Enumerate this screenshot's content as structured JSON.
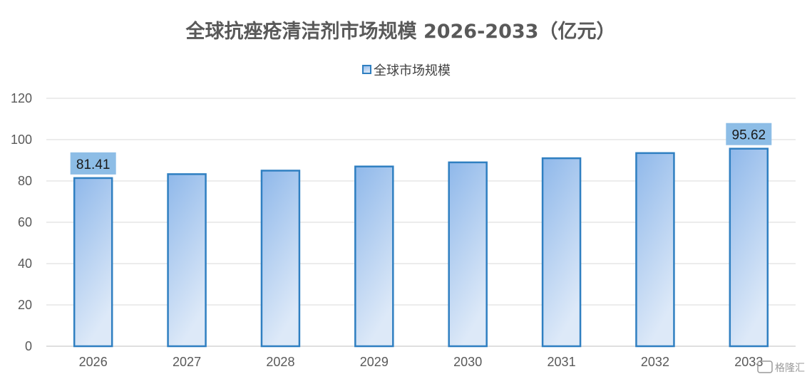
{
  "chart_data": {
    "type": "bar",
    "title": "全球抗痤疮清洁剂市场规模 2026-2033（亿元）",
    "xlabel": "",
    "ylabel": "",
    "categories": [
      "2026",
      "2027",
      "2028",
      "2029",
      "2030",
      "2031",
      "2032",
      "2033"
    ],
    "series": [
      {
        "name": "全球市场规模",
        "values": [
          81.41,
          83.3,
          85.0,
          87.0,
          89.0,
          91.0,
          93.5,
          95.62
        ]
      }
    ],
    "data_labels": [
      {
        "index": 0,
        "text": "81.41"
      },
      {
        "index": 7,
        "text": "95.62"
      }
    ],
    "ylim": [
      0,
      120
    ],
    "yticks": [
      "0",
      "20",
      "40",
      "60",
      "80",
      "100",
      "120"
    ],
    "grid": true,
    "legend_position": "top",
    "colors": {
      "bar_top": "#8fb8ea",
      "bar_bottom": "#dde9f8",
      "bar_border": "#2f7fc1",
      "label_bg": "#8dbde6",
      "grid": "#d9d9d9",
      "axis": "#bfbfbf"
    }
  },
  "watermark": {
    "icon": "gelonghui-logo-icon",
    "text": "格隆汇"
  }
}
